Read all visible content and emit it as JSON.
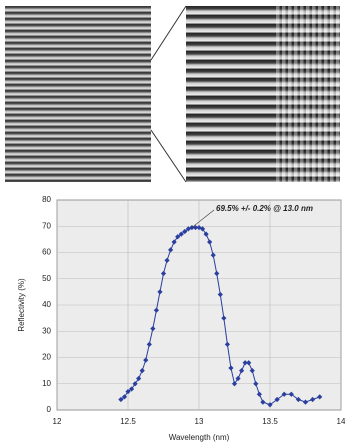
{
  "chart_data": {
    "type": "scatter-line",
    "annotation": "69.5% +/- 0.2% @ 13.0 nm",
    "x_label": "Wavelength (nm)",
    "y_label": "Reflectivity (%)",
    "color": "#2b3f9e",
    "grid": true,
    "xlim": [
      12,
      14
    ],
    "xticks": [
      12,
      12.5,
      13,
      13.5,
      14
    ],
    "ylim": [
      0,
      80
    ],
    "yticks": [
      0,
      10,
      20,
      30,
      40,
      50,
      60,
      70,
      80
    ],
    "x": [
      12.45,
      12.475,
      12.5,
      12.525,
      12.55,
      12.575,
      12.6,
      12.625,
      12.65,
      12.675,
      12.7,
      12.725,
      12.75,
      12.775,
      12.8,
      12.825,
      12.85,
      12.875,
      12.9,
      12.925,
      12.95,
      12.975,
      13.0,
      13.025,
      13.05,
      13.075,
      13.1,
      13.125,
      13.15,
      13.175,
      13.2,
      13.225,
      13.25,
      13.275,
      13.3,
      13.325,
      13.35,
      13.375,
      13.4,
      13.425,
      13.45,
      13.5,
      13.55,
      13.6,
      13.65,
      13.7,
      13.75,
      13.8,
      13.85
    ],
    "values": [
      4,
      5,
      7,
      8,
      10,
      12,
      15,
      19,
      25,
      31,
      38,
      45,
      52,
      57,
      61,
      64,
      66,
      67,
      68,
      69,
      69.5,
      69.5,
      69.5,
      69,
      67,
      64,
      59,
      52,
      44,
      35,
      25,
      16,
      10,
      12,
      15,
      18,
      18,
      15,
      10,
      6,
      3,
      2,
      4,
      6,
      6,
      4,
      3,
      4,
      5
    ]
  }
}
